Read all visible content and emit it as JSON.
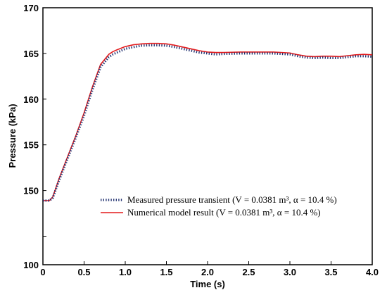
{
  "chart_data": {
    "type": "line",
    "xlabel": "Time (s)",
    "ylabel": "Pressure (kPa)",
    "xlim": [
      0,
      4.0
    ],
    "ylim": [
      100,
      170
    ],
    "x_ticks": [
      0,
      0.5,
      1.0,
      1.5,
      2.0,
      2.5,
      3.0,
      3.5,
      4.0
    ],
    "x_tick_labels": [
      "0",
      "0.5",
      "1.0",
      "1.5",
      "2.0",
      "2.5",
      "3.0",
      "3.5",
      "4.0"
    ],
    "y_ticks": [
      100,
      145,
      150,
      155,
      160,
      165,
      170
    ],
    "y_tick_labels": [
      "100",
      "",
      "150",
      "155",
      "160",
      "165",
      "170"
    ],
    "y_axis_break": true,
    "grid": false,
    "legend_position": "lower-right",
    "series": [
      {
        "name": "Measured pressure transient (V = 0.0381 m³, α = 10.4 %)",
        "style": "dotted",
        "color": "#1f2f6e",
        "x": [
          0,
          0.08,
          0.12,
          0.2,
          0.3,
          0.4,
          0.5,
          0.6,
          0.7,
          0.8,
          0.85,
          0.9,
          1.0,
          1.1,
          1.2,
          1.3,
          1.4,
          1.5,
          1.6,
          1.7,
          1.8,
          1.9,
          2.0,
          2.1,
          2.2,
          2.4,
          2.6,
          2.8,
          3.0,
          3.1,
          3.2,
          3.3,
          3.4,
          3.5,
          3.6,
          3.7,
          3.8,
          3.9,
          4.0
        ],
        "y": [
          148.9,
          148.9,
          149.2,
          151.2,
          153.5,
          155.8,
          158.2,
          161.0,
          163.5,
          164.6,
          164.9,
          165.1,
          165.5,
          165.7,
          165.85,
          165.9,
          165.9,
          165.85,
          165.7,
          165.5,
          165.3,
          165.1,
          165.0,
          164.9,
          164.95,
          165.0,
          165.0,
          165.0,
          164.9,
          164.7,
          164.55,
          164.5,
          164.55,
          164.5,
          164.5,
          164.6,
          164.7,
          164.7,
          164.65
        ]
      },
      {
        "name": "Numerical model result (V = 0.0381 m³, α = 10.4 %)",
        "style": "solid",
        "color": "#e31a1c",
        "x": [
          0,
          0.08,
          0.12,
          0.2,
          0.3,
          0.4,
          0.5,
          0.6,
          0.7,
          0.8,
          0.85,
          0.9,
          1.0,
          1.1,
          1.2,
          1.3,
          1.4,
          1.5,
          1.6,
          1.7,
          1.8,
          1.9,
          2.0,
          2.1,
          2.2,
          2.4,
          2.6,
          2.8,
          3.0,
          3.1,
          3.2,
          3.3,
          3.4,
          3.5,
          3.6,
          3.7,
          3.8,
          3.9,
          4.0
        ],
        "y": [
          148.9,
          148.9,
          149.3,
          151.4,
          153.7,
          156.0,
          158.5,
          161.3,
          163.8,
          164.9,
          165.2,
          165.4,
          165.75,
          165.95,
          166.05,
          166.1,
          166.1,
          166.05,
          165.9,
          165.7,
          165.5,
          165.3,
          165.15,
          165.1,
          165.1,
          165.15,
          165.15,
          165.15,
          165.05,
          164.85,
          164.7,
          164.65,
          164.7,
          164.7,
          164.65,
          164.75,
          164.85,
          164.9,
          164.85
        ]
      }
    ]
  }
}
